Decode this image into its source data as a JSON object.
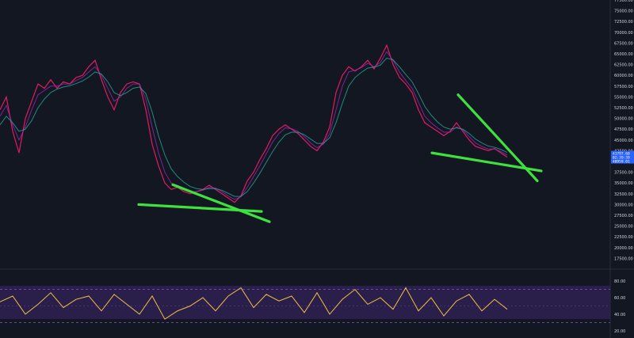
{
  "chart_data": [
    {
      "type": "line",
      "title": "",
      "xlabel": "",
      "ylabel": "",
      "ylim": [
        15000,
        77500
      ],
      "y_ticks": [
        17500,
        20000,
        22500,
        25000,
        27500,
        30000,
        32500,
        35000,
        37500,
        40000,
        42500,
        45000,
        47500,
        50000,
        52500,
        55000,
        57500,
        60000,
        62500,
        65000,
        67500,
        70000,
        72500,
        75000,
        77500
      ],
      "y_tick_labels": [
        "17500.00",
        "20000.00",
        "22500.00",
        "25000.00",
        "27500.00",
        "30000.00",
        "32500.00",
        "35000.00",
        "37500.00",
        "40000.00",
        "42500.00",
        "45000.00",
        "47500.00",
        "50000.00",
        "52500.00",
        "55000.00",
        "57500.00",
        "60000.00",
        "62500.00",
        "65000.00",
        "67500.00",
        "70000.00",
        "72500.00",
        "75000.00",
        "77500.00"
      ],
      "price_scale": "right",
      "grid": false,
      "x": [
        0,
        8,
        16,
        24,
        32,
        40,
        48,
        56,
        64,
        72,
        80,
        88,
        96,
        104,
        112,
        120,
        128,
        136,
        144,
        152,
        160,
        168,
        176,
        184,
        192,
        200,
        208,
        216,
        224,
        232,
        240,
        248,
        256,
        264,
        272,
        280,
        288,
        296,
        304,
        312,
        320,
        328,
        336,
        344,
        352,
        360,
        368,
        376,
        384,
        392,
        400,
        408,
        416,
        424,
        432,
        440,
        448,
        456,
        464,
        472,
        480,
        488,
        496,
        504,
        512,
        520,
        528,
        536,
        544,
        552,
        560,
        568,
        576,
        584,
        592,
        600,
        608,
        616,
        624,
        632,
        640
      ],
      "series": [
        {
          "values": [
            52000,
            55000,
            47000,
            42000,
            50000,
            54000,
            58000,
            57000,
            59000,
            57000,
            58500,
            58000,
            59500,
            60000,
            62000,
            63500,
            59000,
            55000,
            52000,
            56000,
            58000,
            58500,
            58000,
            52000,
            44000,
            39000,
            35000,
            33500,
            34000,
            33000,
            32500,
            33000,
            33500,
            34500,
            33500,
            32500,
            31500,
            30500,
            32000,
            35500,
            37500,
            40500,
            43000,
            46000,
            47500,
            48500,
            47500,
            46500,
            45000,
            43500,
            42500,
            44500,
            48000,
            56000,
            60000,
            62000,
            61000,
            62000,
            63500,
            61500,
            64000,
            67000,
            62500,
            59500,
            58000,
            56000,
            52000,
            49000,
            48000,
            47000,
            46000,
            47000,
            49000,
            47000,
            45000,
            43500,
            43000,
            42500,
            43000,
            42000,
            41000
          ],
          "color": "#e91e63"
        },
        {
          "values": [
            50500,
            53000,
            48500,
            45000,
            48000,
            52000,
            55500,
            56500,
            57500,
            57500,
            58000,
            58000,
            58800,
            59500,
            60800,
            62000,
            60000,
            57000,
            54000,
            55000,
            57000,
            58000,
            58000,
            54500,
            48000,
            42000,
            37500,
            35000,
            34500,
            33800,
            33000,
            33000,
            33300,
            34000,
            33800,
            33000,
            32000,
            31200,
            31800,
            34000,
            36500,
            39000,
            41800,
            44500,
            46500,
            47800,
            47600,
            47000,
            45800,
            44300,
            43200,
            44000,
            46500,
            52000,
            57500,
            60800,
            61200,
            61800,
            62800,
            62000,
            63000,
            65500,
            63500,
            60800,
            58800,
            57000,
            53800,
            50500,
            49000,
            47800,
            46800,
            46800,
            48000,
            47400,
            45800,
            44300,
            43500,
            42900,
            42900,
            42300,
            41500
          ],
          "color": "#9c27b0"
        },
        {
          "values": [
            48500,
            50500,
            49000,
            47000,
            47500,
            49500,
            52500,
            54500,
            56000,
            56800,
            57300,
            57600,
            58100,
            58700,
            59600,
            60800,
            60300,
            58500,
            56000,
            55300,
            56000,
            57000,
            57300,
            55800,
            51500,
            46000,
            41500,
            38300,
            36500,
            35200,
            34200,
            33700,
            33500,
            33700,
            33700,
            33300,
            32600,
            31900,
            31900,
            33000,
            35000,
            37300,
            39800,
            42300,
            44500,
            46200,
            46800,
            46800,
            46200,
            45200,
            44200,
            44200,
            45500,
            49000,
            53500,
            57500,
            59500,
            60700,
            61700,
            61900,
            62400,
            64000,
            63600,
            62000,
            60200,
            58500,
            55800,
            52800,
            50800,
            49200,
            48000,
            47500,
            47800,
            47500,
            46500,
            45200,
            44300,
            43600,
            43300,
            42800,
            42100
          ],
          "color": "#26a69a"
        }
      ],
      "drawn_lines": [
        {
          "label": "upper-trendline-1",
          "color": "#3ee23e",
          "points": [
            [
              218,
              34600
            ],
            [
              340,
              26000
            ]
          ]
        },
        {
          "label": "lower-trendline-1",
          "color": "#3ee23e",
          "points": [
            [
              175,
              30000
            ],
            [
              330,
              28400
            ]
          ]
        },
        {
          "label": "upper-trendline-2",
          "color": "#3ee23e",
          "points": [
            [
              578,
              55500
            ],
            [
              678,
              35500
            ]
          ]
        },
        {
          "label": "lower-trendline-2",
          "color": "#3ee23e",
          "points": [
            [
              545,
              42000
            ],
            [
              683,
              37800
            ]
          ]
        }
      ],
      "badge": {
        "lines": [
          "41797.60",
          "02:39:39",
          "40959.01"
        ],
        "color": "#2962ff"
      }
    },
    {
      "type": "line",
      "title": "",
      "xlabel": "",
      "ylabel": "",
      "ylim": [
        15,
        85
      ],
      "y_ticks": [
        20,
        40,
        60,
        80
      ],
      "y_tick_labels": [
        "20.00",
        "40.00",
        "60.00",
        "80.00"
      ],
      "band": [
        30,
        70
      ],
      "midline": 50,
      "grid": false,
      "x": [
        0,
        16,
        32,
        48,
        64,
        80,
        96,
        112,
        128,
        144,
        160,
        176,
        192,
        208,
        224,
        240,
        256,
        272,
        288,
        304,
        320,
        336,
        352,
        368,
        384,
        400,
        416,
        432,
        448,
        464,
        480,
        496,
        512,
        528,
        544,
        560,
        576,
        592,
        608,
        624,
        640
      ],
      "series": [
        {
          "color": "#f0c040",
          "values": [
            55,
            62,
            40,
            52,
            66,
            48,
            58,
            62,
            44,
            64,
            52,
            40,
            62,
            34,
            44,
            50,
            60,
            44,
            62,
            72,
            48,
            64,
            56,
            62,
            42,
            66,
            40,
            58,
            70,
            52,
            60,
            46,
            72,
            44,
            60,
            38,
            56,
            64,
            44,
            58,
            46
          ]
        }
      ]
    }
  ]
}
